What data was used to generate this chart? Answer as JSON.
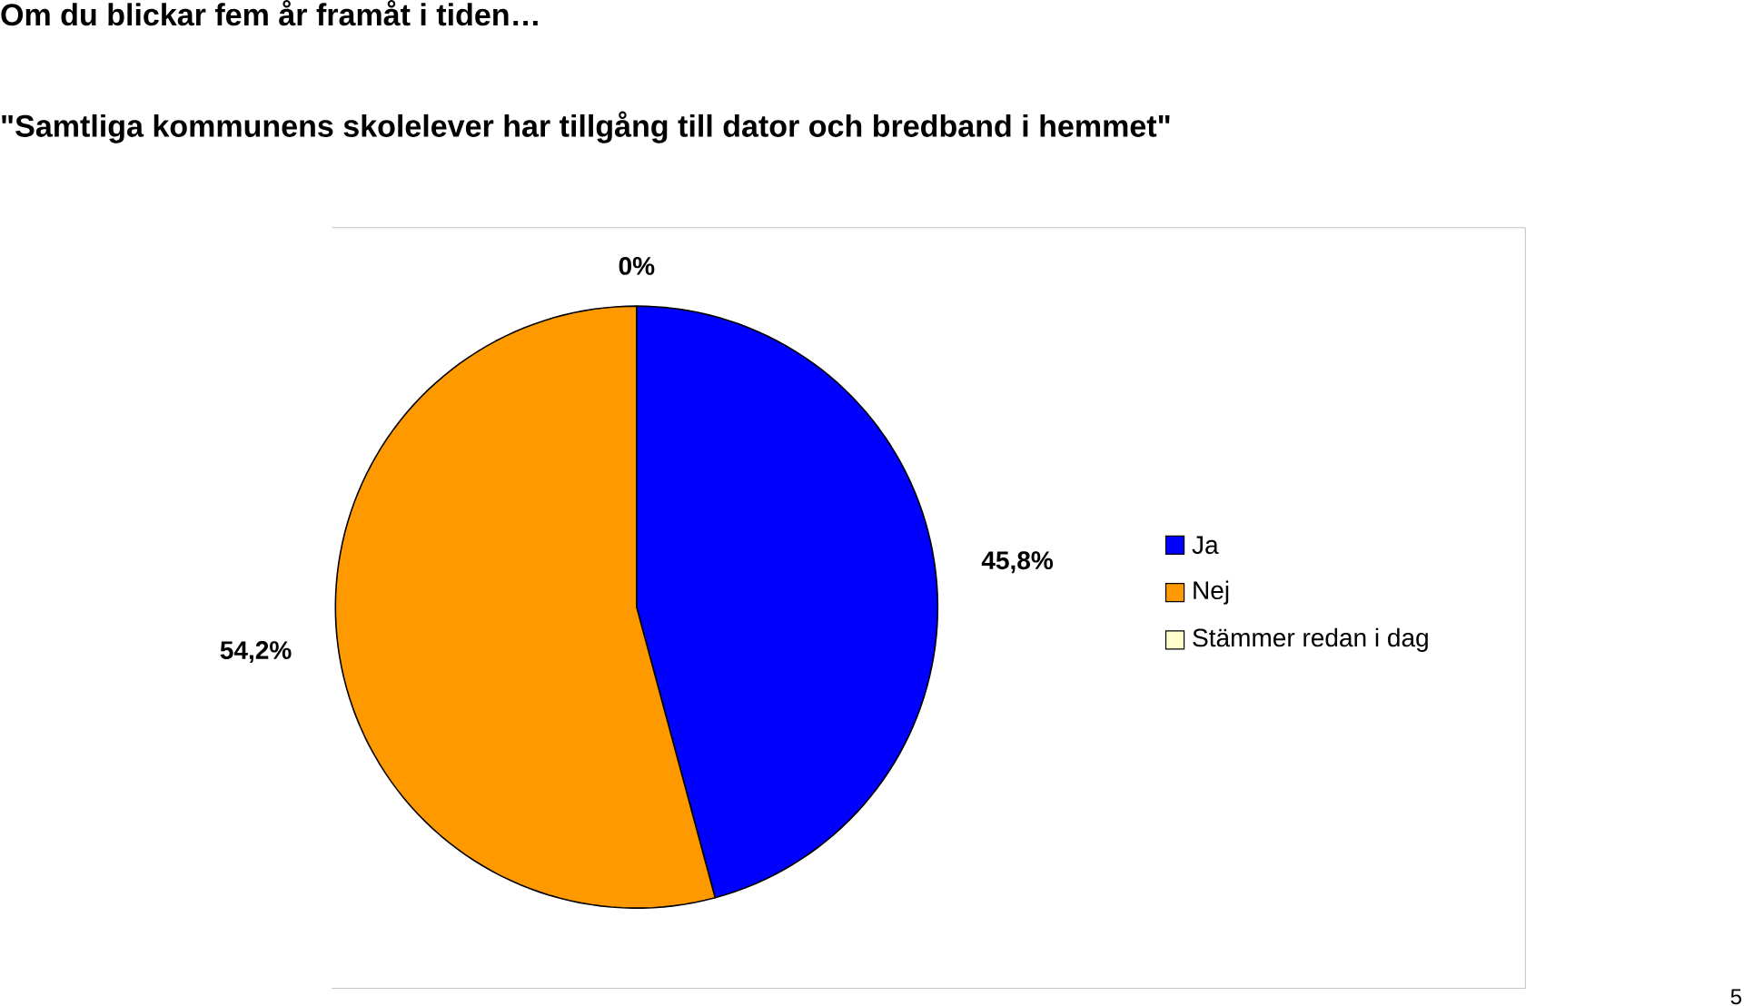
{
  "chart_data": {
    "type": "pie",
    "title": "Om du blickar fem år framåt i tiden…",
    "subtitle": "\"Samtliga kommunens skolelever har tillgång till dator och bredband i hemmet\"",
    "categories": [
      "Ja",
      "Nej",
      "Stämmer redan i dag"
    ],
    "values": [
      45.8,
      54.2,
      0
    ],
    "colors": [
      "#0000ff",
      "#ff9900",
      "#ffffcc"
    ],
    "value_labels": [
      "45,8%",
      "54,2%",
      "0%"
    ],
    "legend": "right",
    "annotations": [
      "5"
    ]
  }
}
